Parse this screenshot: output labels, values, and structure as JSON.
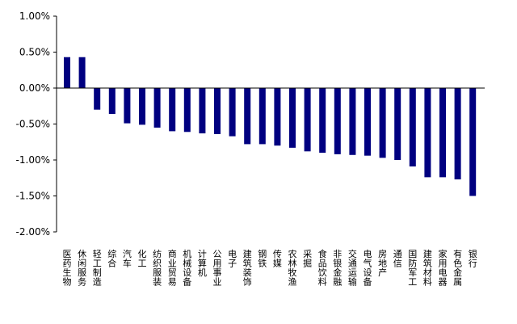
{
  "chart_data": {
    "type": "bar",
    "title": "",
    "xlabel": "",
    "ylabel": "",
    "ylim": [
      -2.0,
      1.0
    ],
    "yticks": [
      "1.00%",
      "0.50%",
      "0.00%",
      "-0.50%",
      "-1.00%",
      "-1.50%",
      "-2.00%"
    ],
    "ytick_values": [
      1.0,
      0.5,
      0.0,
      -0.5,
      -1.0,
      -1.5,
      -2.0
    ],
    "grid": false,
    "bar_color": "#000080",
    "categories": [
      "医药生物",
      "休闲服务",
      "轻工制造",
      "综合",
      "汽车",
      "化工",
      "纺织服装",
      "商业贸易",
      "机械设备",
      "计算机",
      "公用事业",
      "电子",
      "建筑装饰",
      "钢铁",
      "传媒",
      "农林牧渔",
      "采掘",
      "食品饮料",
      "非银金融",
      "交通运输",
      "电气设备",
      "房地产",
      "通信",
      "国防军工",
      "建筑材料",
      "家用电器",
      "有色金属",
      "银行"
    ],
    "values": [
      0.43,
      0.43,
      -0.3,
      -0.36,
      -0.49,
      -0.51,
      -0.55,
      -0.6,
      -0.61,
      -0.63,
      -0.64,
      -0.67,
      -0.78,
      -0.78,
      -0.8,
      -0.83,
      -0.88,
      -0.9,
      -0.92,
      -0.93,
      -0.94,
      -0.97,
      -1.0,
      -1.09,
      -1.24,
      -1.24,
      -1.27,
      -1.5
    ]
  }
}
